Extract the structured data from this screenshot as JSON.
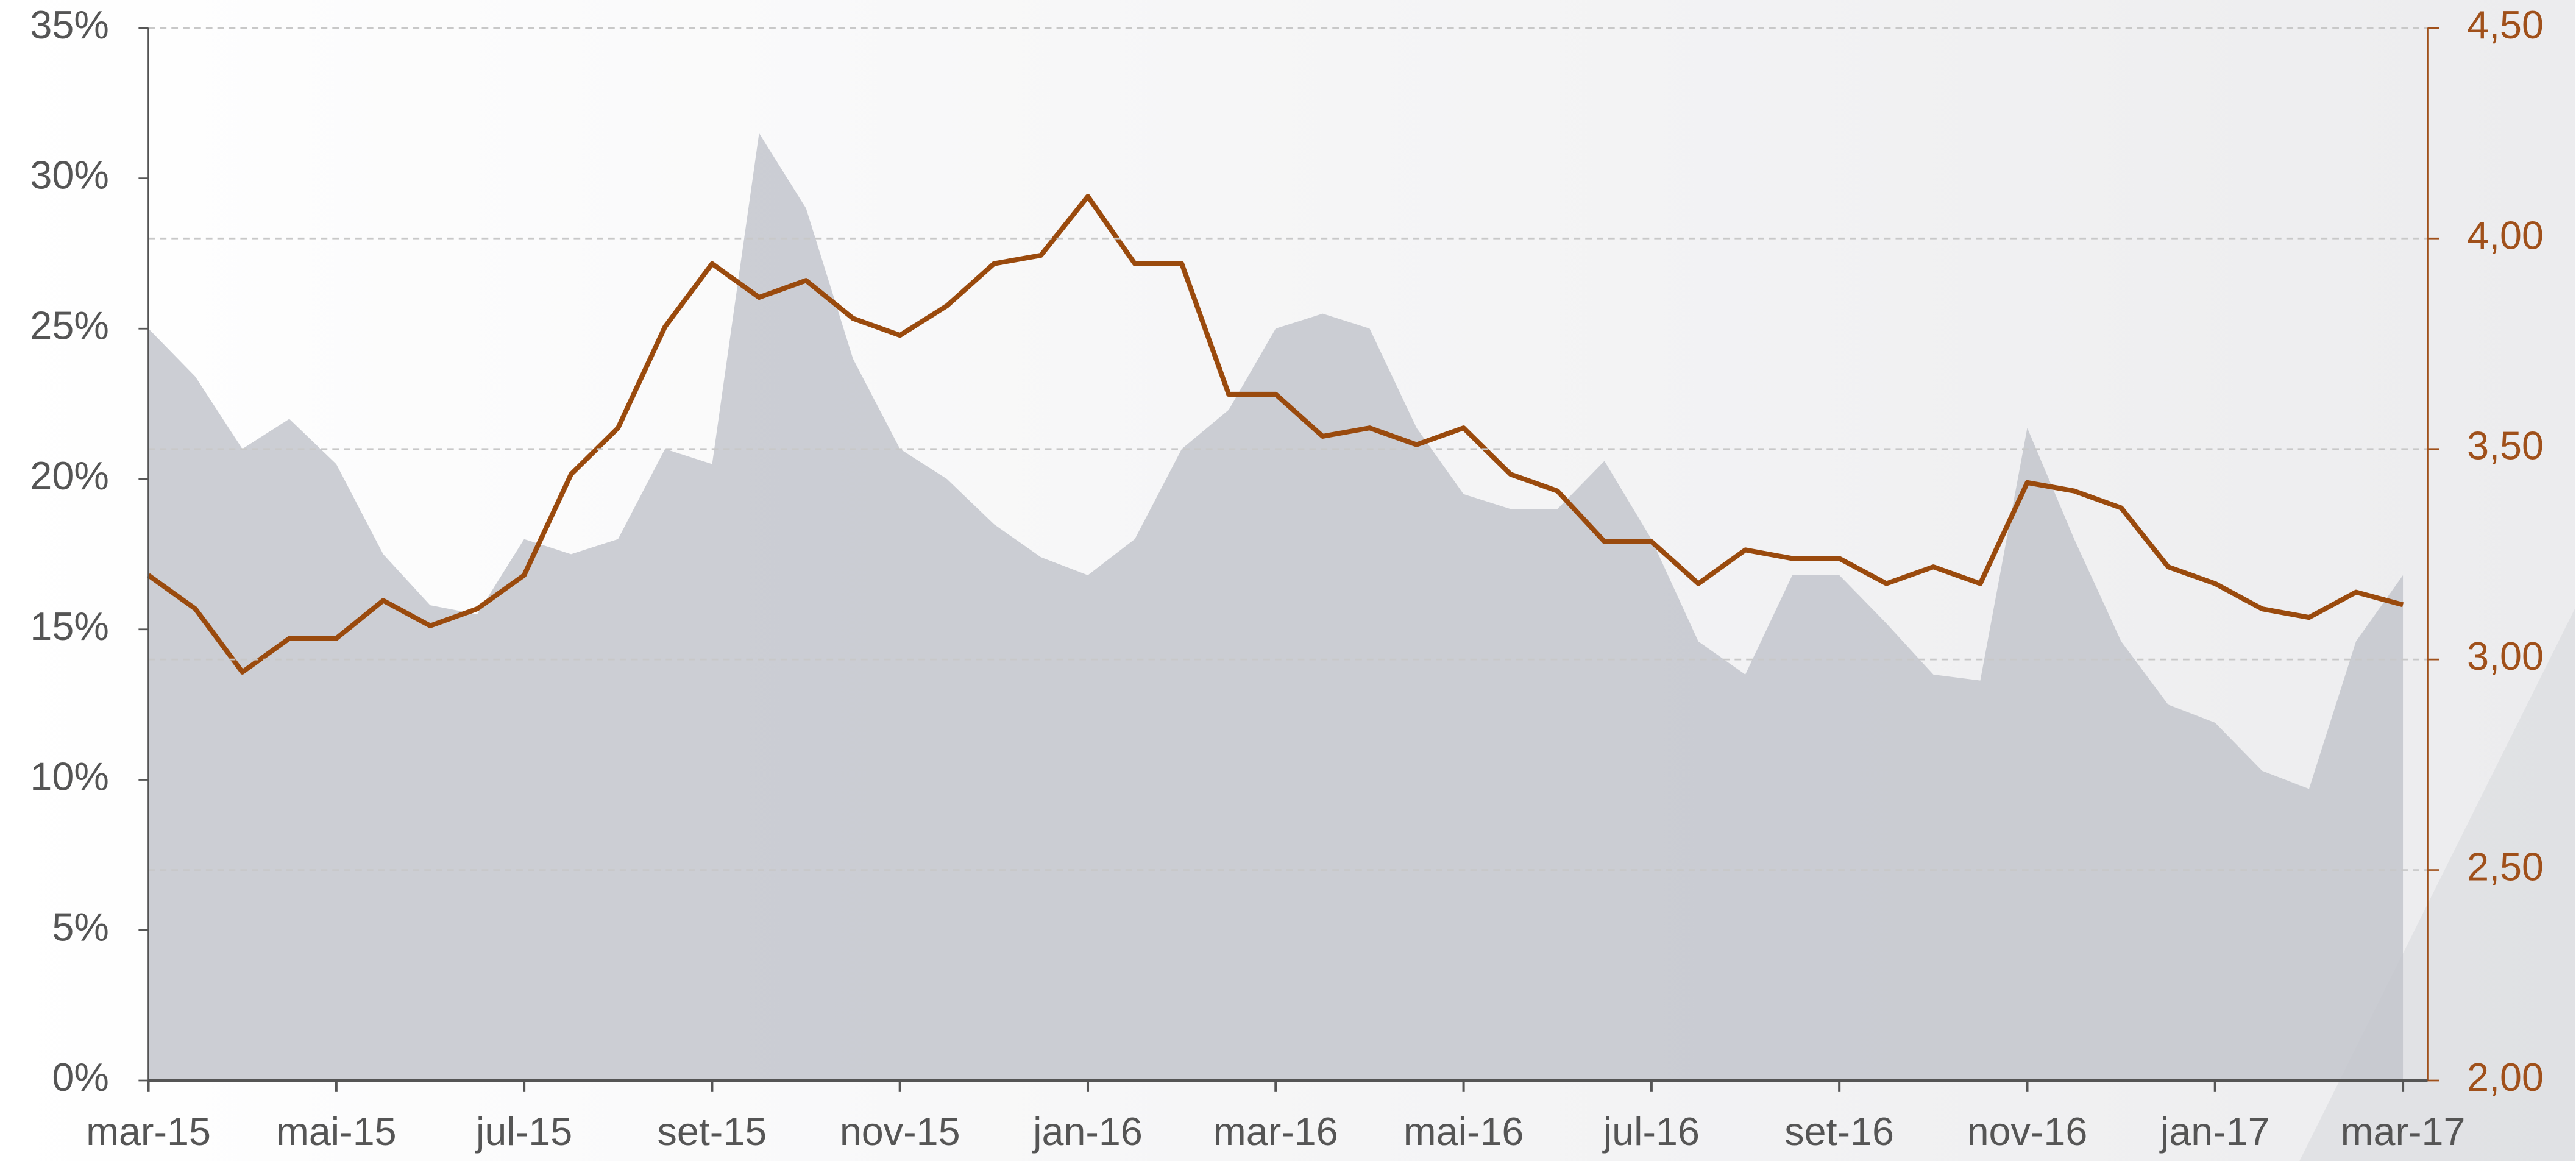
{
  "chart_data": {
    "type": "line",
    "categories": [
      "mar-15",
      null,
      null,
      null,
      "mai-15",
      null,
      null,
      null,
      "jul-15",
      null,
      null,
      null,
      "set-15",
      null,
      null,
      null,
      "nov-15",
      null,
      null,
      null,
      "jan-16",
      null,
      null,
      null,
      "mar-16",
      null,
      null,
      null,
      "mai-16",
      null,
      null,
      null,
      "jul-16",
      null,
      null,
      null,
      "set-16",
      null,
      null,
      null,
      "nov-16",
      null,
      null,
      null,
      "jan-17",
      null,
      null,
      null,
      "mar-17"
    ],
    "series": [
      {
        "type": "area",
        "color": "#c3c6cd",
        "values": [
          25,
          23.4,
          21,
          22,
          20.5,
          17.5,
          15.8,
          15.5,
          18,
          17.5,
          18,
          21,
          20.5,
          31.5,
          29,
          24,
          21,
          20,
          18.5,
          17.4,
          16.8,
          18,
          21,
          22.3,
          25,
          25.5,
          25,
          21.7,
          19.5,
          19,
          19,
          20.6,
          18,
          14.6,
          13.5,
          16.8,
          16.8,
          15.2,
          13.5,
          13.3,
          21.7,
          18,
          14.6,
          12.5,
          11.9,
          10.3,
          9.7,
          14.6,
          16.8
        ]
      },
      {
        "type": "line",
        "axis": "y2",
        "color": "#9a4a0d",
        "values": [
          3.2,
          3.12,
          2.97,
          3.05,
          3.05,
          3.14,
          3.08,
          3.12,
          3.2,
          3.44,
          3.55,
          3.79,
          3.94,
          3.86,
          3.9,
          3.81,
          3.77,
          3.84,
          3.94,
          3.96,
          4.1,
          3.94,
          3.94,
          3.63,
          3.63,
          3.53,
          3.55,
          3.51,
          3.55,
          3.44,
          3.4,
          3.28,
          3.28,
          3.18,
          3.26,
          3.24,
          3.24,
          3.18,
          3.22,
          3.18,
          3.42,
          3.4,
          3.36,
          3.22,
          3.18,
          3.12,
          3.1,
          3.16,
          3.13
        ]
      }
    ],
    "ylim": [
      0,
      35
    ],
    "yticks": [
      {
        "value": 0,
        "label": "0%"
      },
      {
        "value": 5,
        "label": "5%"
      },
      {
        "value": 10,
        "label": "10%"
      },
      {
        "value": 15,
        "label": "15%"
      },
      {
        "value": 20,
        "label": "20%"
      },
      {
        "value": 25,
        "label": "25%"
      },
      {
        "value": 30,
        "label": "30%"
      },
      {
        "value": 35,
        "label": "35%"
      }
    ],
    "y2lim": [
      2,
      4.5
    ],
    "y2ticks": [
      {
        "value": 2,
        "label": "2,00"
      },
      {
        "value": 2.5,
        "label": "2,50"
      },
      {
        "value": 3,
        "label": "3,00"
      },
      {
        "value": 3.5,
        "label": "3,50"
      },
      {
        "value": 4,
        "label": "4,00"
      },
      {
        "value": 4.5,
        "label": "4,50"
      }
    ],
    "y2color": "#a0501a",
    "grid": true
  }
}
